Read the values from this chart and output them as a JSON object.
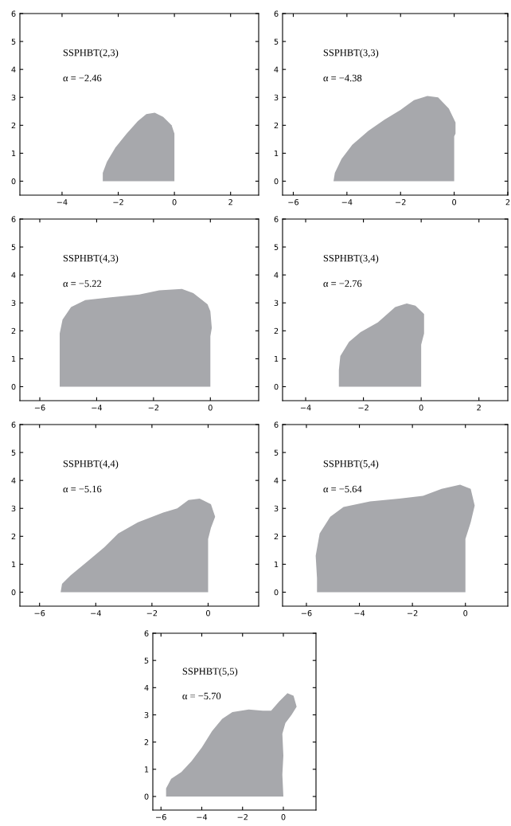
{
  "chart_data": [
    {
      "type": "area",
      "annotations": [
        "SSPHBT(2,3)",
        "α = −2.46"
      ],
      "color": "#a7a8ac",
      "xlim": [
        -5.5,
        3
      ],
      "xticks": [
        -4,
        -2,
        0,
        2
      ],
      "ylim": [
        -0.5,
        6
      ],
      "yticks": [
        0,
        1,
        2,
        3,
        4,
        5,
        6
      ],
      "x": [
        -2.55,
        -2.55,
        -2.4,
        -2.1,
        -1.7,
        -1.3,
        -1.0,
        -0.7,
        -0.4,
        -0.1,
        0,
        0
      ],
      "values": [
        0,
        0.3,
        0.7,
        1.2,
        1.7,
        2.15,
        2.4,
        2.45,
        2.3,
        2.0,
        1.7,
        0
      ]
    },
    {
      "type": "area",
      "annotations": [
        "SSPHBT(3,3)",
        "α = −4.38"
      ],
      "color": "#a7a8ac",
      "xlim": [
        -6.4,
        2
      ],
      "xticks": [
        -6,
        -4,
        -2,
        0,
        2
      ],
      "ylim": [
        -0.5,
        6
      ],
      "yticks": [
        0,
        1,
        2,
        3,
        4,
        5,
        6
      ],
      "x": [
        -4.5,
        -4.45,
        -4.2,
        -3.8,
        -3.2,
        -2.6,
        -2.0,
        -1.5,
        -1.0,
        -0.6,
        -0.2,
        0.05,
        0.05,
        0,
        0
      ],
      "values": [
        0,
        0.3,
        0.8,
        1.3,
        1.8,
        2.2,
        2.55,
        2.9,
        3.05,
        3.0,
        2.6,
        2.1,
        1.7,
        1.6,
        0
      ]
    },
    {
      "type": "area",
      "annotations": [
        "SSPHBT(4,3)",
        "α = −5.22"
      ],
      "color": "#a7a8ac",
      "xlim": [
        -6.7,
        1.7
      ],
      "xticks": [
        -6,
        -4,
        -2,
        0
      ],
      "ylim": [
        -0.5,
        6
      ],
      "yticks": [
        0,
        1,
        2,
        3,
        4,
        5,
        6
      ],
      "x": [
        -5.3,
        -5.3,
        -5.2,
        -4.9,
        -4.4,
        -3.5,
        -2.5,
        -1.8,
        -1.0,
        -0.6,
        -0.1,
        0,
        0.05,
        0,
        0
      ],
      "values": [
        0,
        1.9,
        2.4,
        2.85,
        3.1,
        3.2,
        3.3,
        3.45,
        3.5,
        3.35,
        2.95,
        2.7,
        2.1,
        1.8,
        0
      ]
    },
    {
      "type": "area",
      "annotations": [
        "SSPHBT(3,4)",
        "α = −2.76"
      ],
      "color": "#a7a8ac",
      "xlim": [
        -4.8,
        3
      ],
      "xticks": [
        -4,
        -2,
        0,
        2
      ],
      "ylim": [
        -0.5,
        6
      ],
      "yticks": [
        0,
        1,
        2,
        3,
        4,
        5,
        6
      ],
      "x": [
        -2.85,
        -2.85,
        -2.8,
        -2.5,
        -2.1,
        -1.5,
        -0.9,
        -0.5,
        -0.2,
        0.1,
        0.1,
        0,
        0
      ],
      "values": [
        0,
        0.6,
        1.1,
        1.6,
        1.95,
        2.3,
        2.85,
        2.98,
        2.9,
        2.6,
        1.9,
        1.5,
        0
      ]
    },
    {
      "type": "area",
      "annotations": [
        "SSPHBT(4,4)",
        "α = −5.16"
      ],
      "color": "#a7a8ac",
      "xlim": [
        -6.7,
        1.8
      ],
      "xticks": [
        -6,
        -4,
        -2,
        0
      ],
      "ylim": [
        -0.5,
        6
      ],
      "yticks": [
        0,
        1,
        2,
        3,
        4,
        5,
        6
      ],
      "x": [
        -5.25,
        -5.2,
        -4.9,
        -4.3,
        -3.7,
        -3.2,
        -2.5,
        -1.6,
        -1.1,
        -0.7,
        -0.3,
        0.1,
        0.25,
        0.1,
        0,
        0
      ],
      "values": [
        0,
        0.3,
        0.6,
        1.1,
        1.6,
        2.1,
        2.5,
        2.85,
        3.0,
        3.3,
        3.35,
        3.15,
        2.7,
        2.3,
        1.9,
        0
      ]
    },
    {
      "type": "area",
      "annotations": [
        "SSPHBT(5,4)",
        "α = −5.64"
      ],
      "color": "#a7a8ac",
      "xlim": [
        -6.9,
        1.6
      ],
      "xticks": [
        -6,
        -4,
        -2,
        0
      ],
      "ylim": [
        -0.5,
        6
      ],
      "yticks": [
        0,
        1,
        2,
        3,
        4,
        5,
        6
      ],
      "x": [
        -5.6,
        -5.6,
        -5.65,
        -5.5,
        -5.1,
        -4.6,
        -3.6,
        -2.5,
        -1.6,
        -0.9,
        -0.2,
        0.2,
        0.35,
        0.2,
        0,
        0
      ],
      "values": [
        0,
        0.5,
        1.3,
        2.1,
        2.7,
        3.05,
        3.25,
        3.35,
        3.45,
        3.7,
        3.85,
        3.7,
        3.1,
        2.5,
        1.9,
        0
      ]
    },
    {
      "type": "area",
      "annotations": [
        "SSPHBT(5,5)",
        "α = −5.70"
      ],
      "color": "#a7a8ac",
      "xlim": [
        -6.4,
        1.6
      ],
      "xticks": [
        -6,
        -4,
        -2,
        0
      ],
      "ylim": [
        -0.5,
        6
      ],
      "yticks": [
        0,
        1,
        2,
        3,
        4,
        5,
        6
      ],
      "x": [
        -5.75,
        -5.75,
        -5.5,
        -5.0,
        -4.5,
        -4.0,
        -3.5,
        -3.0,
        -2.5,
        -1.7,
        -1.0,
        -0.6,
        -0.2,
        0.2,
        0.5,
        0.65,
        0.4,
        0.1,
        -0.05,
        0,
        -0.05,
        0
      ],
      "values": [
        0,
        0.3,
        0.65,
        0.9,
        1.3,
        1.8,
        2.4,
        2.85,
        3.1,
        3.2,
        3.15,
        3.15,
        3.5,
        3.8,
        3.7,
        3.3,
        3.0,
        2.7,
        2.3,
        1.5,
        0.8,
        0
      ]
    }
  ]
}
